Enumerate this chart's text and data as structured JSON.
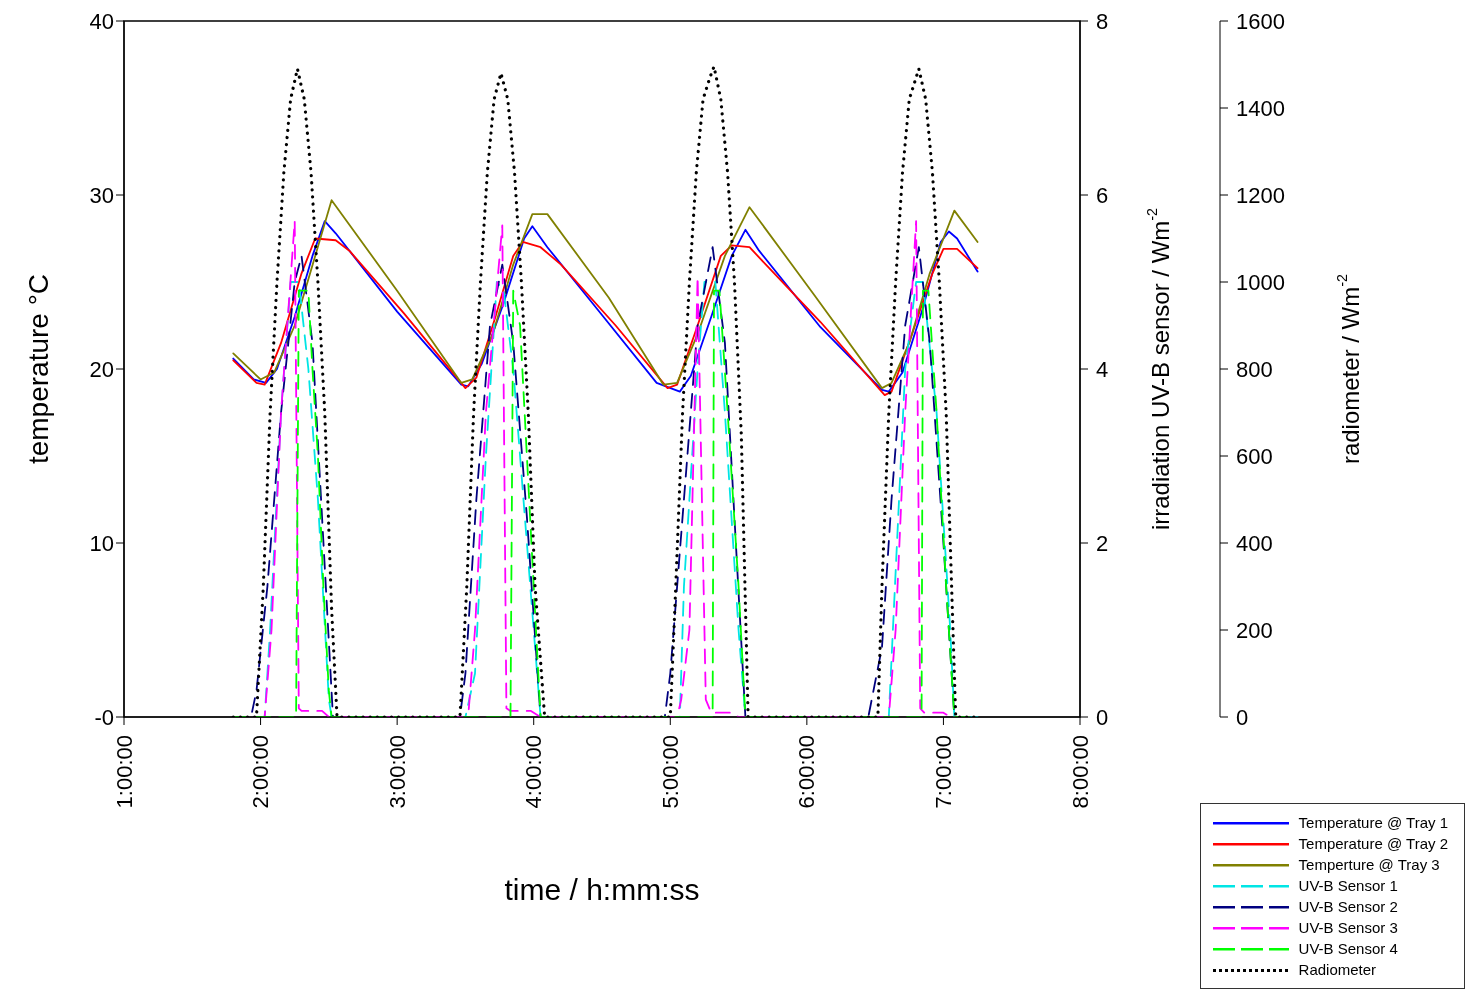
{
  "chart_data": {
    "type": "line",
    "xlabel": "time / h:mm:ss",
    "ylabel": "temperature  °C",
    "y2label": "irradiation UV-B sensor / Wm$^{-2}$",
    "y3label": "radiometer / Wm$^{-2}$",
    "xlim": [
      1,
      8
    ],
    "xticks": [
      {
        "value": 1,
        "label": "1:00:00"
      },
      {
        "value": 2,
        "label": "2:00:00"
      },
      {
        "value": 3,
        "label": "3:00:00"
      },
      {
        "value": 4,
        "label": "4:00:00"
      },
      {
        "value": 5,
        "label": "5:00:00"
      },
      {
        "value": 6,
        "label": "6:00:00"
      },
      {
        "value": 7,
        "label": "7:00:00"
      },
      {
        "value": 8,
        "label": "8:00:00"
      }
    ],
    "ylim": [
      0,
      40
    ],
    "yticks": [
      {
        "value": 0,
        "label": "-0"
      },
      10,
      20,
      30,
      40
    ],
    "y2lim": [
      0,
      8
    ],
    "y2ticks": [
      0,
      2,
      4,
      6,
      8
    ],
    "y3lim": [
      0,
      1600
    ],
    "y3ticks": [
      0,
      200,
      400,
      600,
      800,
      1000,
      1200,
      1400,
      1600
    ],
    "legend": "bottom right",
    "series": [
      {
        "name": "Temperature @ Tray 1",
        "color": "#0000ff",
        "line_style": "solid",
        "x": [
          1.8,
          1.95,
          2.04,
          2.12,
          2.25,
          2.38,
          2.47,
          2.55,
          3.0,
          3.47,
          3.52,
          3.62,
          3.78,
          3.93,
          3.99,
          4.1,
          4.5,
          4.9,
          5.07,
          5.15,
          5.3,
          5.45,
          5.55,
          5.65,
          6.1,
          6.55,
          6.6,
          6.7,
          6.85,
          6.98,
          7.04,
          7.1,
          7.25
        ],
        "values": [
          20.6,
          19.4,
          19.2,
          20.0,
          23.0,
          26.5,
          28.5,
          27.8,
          23.3,
          19.1,
          19.0,
          20.3,
          23.8,
          27.5,
          28.2,
          27.0,
          23.1,
          19.2,
          18.7,
          19.6,
          23.0,
          26.5,
          28.0,
          26.8,
          22.4,
          18.8,
          18.7,
          19.8,
          23.5,
          27.3,
          27.9,
          27.5,
          25.6
        ]
      },
      {
        "name": "Temperature @ Tray 2",
        "color": "#ff0000",
        "line_style": "solid",
        "x": [
          1.8,
          1.97,
          2.03,
          2.15,
          2.3,
          2.4,
          2.55,
          2.65,
          3.05,
          3.5,
          3.58,
          3.72,
          3.85,
          3.92,
          4.05,
          4.2,
          4.6,
          4.98,
          5.05,
          5.2,
          5.37,
          5.45,
          5.58,
          5.7,
          6.1,
          6.57,
          6.62,
          6.77,
          6.92,
          7.0,
          7.1,
          7.25
        ],
        "values": [
          20.5,
          19.2,
          19.1,
          21.5,
          25.5,
          27.5,
          27.4,
          26.8,
          23.2,
          18.9,
          19.5,
          23.0,
          26.5,
          27.3,
          27.0,
          26.0,
          22.5,
          18.9,
          19.1,
          22.5,
          26.5,
          27.1,
          27.0,
          26.0,
          22.7,
          18.5,
          18.7,
          22.0,
          25.5,
          26.9,
          26.9,
          25.8
        ]
      },
      {
        "name": "Temperture @ Tray 3",
        "color": "#808000",
        "line_style": "solid",
        "x": [
          1.8,
          2.0,
          2.1,
          2.25,
          2.4,
          2.52,
          3.0,
          3.47,
          3.55,
          3.7,
          3.85,
          3.99,
          4.1,
          4.55,
          4.95,
          5.05,
          5.2,
          5.4,
          5.58,
          6.05,
          6.55,
          6.62,
          6.75,
          6.9,
          7.08,
          7.25
        ],
        "values": [
          20.9,
          19.4,
          19.8,
          22.5,
          26.5,
          29.7,
          24.5,
          19.2,
          19.4,
          22.0,
          26.0,
          28.9,
          28.9,
          24.1,
          19.1,
          19.2,
          22.0,
          26.5,
          29.3,
          24.3,
          18.9,
          19.2,
          21.5,
          25.5,
          29.1,
          27.3
        ]
      },
      {
        "name": "UV-B Sensor 1",
        "color": "#00e5e5",
        "line_style": "dashed",
        "axis": "y2",
        "x": [
          1.8,
          2.03,
          2.07,
          2.15,
          2.22,
          2.28,
          2.35,
          2.42,
          2.5,
          2.52,
          3.5,
          3.57,
          3.65,
          3.73,
          3.78,
          3.85,
          3.95,
          4.05,
          5.07,
          5.1,
          5.2,
          5.25,
          5.33,
          5.4,
          5.5,
          5.55,
          6.6,
          6.63,
          6.72,
          6.8,
          6.85,
          6.95,
          7.05,
          7.08,
          7.25
        ],
        "values": [
          0,
          0,
          1.0,
          3.5,
          5.0,
          5.0,
          4.0,
          2.5,
          0.2,
          0,
          0,
          0.5,
          3.0,
          5.0,
          4.9,
          4.0,
          2.0,
          0,
          0,
          1.5,
          4.0,
          5.0,
          5.0,
          3.5,
          1.0,
          0,
          0,
          1.0,
          4.0,
          5.0,
          5.0,
          3.5,
          1.0,
          0,
          0
        ]
      },
      {
        "name": "UV-B Sensor 2",
        "color": "#000080",
        "line_style": "dashed",
        "axis": "y2",
        "x": [
          1.8,
          1.93,
          1.97,
          2.05,
          2.15,
          2.25,
          2.3,
          2.38,
          2.45,
          2.53,
          3.46,
          3.5,
          3.58,
          3.68,
          3.77,
          3.85,
          3.95,
          4.05,
          4.96,
          5.0,
          5.1,
          5.2,
          5.31,
          5.4,
          5.48,
          5.55,
          6.45,
          6.55,
          6.62,
          6.72,
          6.82,
          6.9,
          7.0,
          7.08,
          7.25
        ],
        "values": [
          0,
          0,
          0.3,
          1.5,
          3.5,
          5.0,
          5.3,
          4.3,
          2.3,
          0,
          0,
          0.5,
          2.5,
          4.5,
          5.2,
          4.3,
          2.3,
          0,
          0,
          0.5,
          2.5,
          4.5,
          5.4,
          4.3,
          2.0,
          0,
          0,
          0.8,
          2.5,
          4.5,
          5.4,
          4.3,
          2.0,
          0,
          0
        ]
      },
      {
        "name": "UV-B Sensor 3",
        "color": "#ff00ff",
        "line_style": "dashed",
        "axis": "y2",
        "x": [
          1.8,
          2.03,
          2.08,
          2.15,
          2.25,
          2.28,
          2.3,
          2.45,
          2.5,
          3.52,
          3.57,
          3.65,
          3.77,
          3.8,
          3.83,
          3.98,
          4.05,
          5.05,
          5.08,
          5.14,
          5.2,
          5.26,
          5.3,
          5.45,
          5.5,
          6.6,
          6.65,
          6.72,
          6.8,
          6.83,
          6.86,
          7.0,
          7.05,
          7.25
        ],
        "values": [
          0,
          0,
          1.0,
          3.5,
          5.7,
          0.1,
          0.07,
          0.07,
          0,
          0,
          1.0,
          3.5,
          5.65,
          0.1,
          0.07,
          0.07,
          0,
          0,
          0.2,
          1.0,
          5.06,
          0.2,
          0.05,
          0.05,
          0,
          0,
          1.0,
          3.5,
          5.7,
          0.1,
          0.05,
          0.05,
          0,
          0
        ]
      },
      {
        "name": "UV-B Sensor 4",
        "color": "#00ff00",
        "line_style": "dashed",
        "axis": "y2",
        "x": [
          1.8,
          2.26,
          2.28,
          2.35,
          2.38,
          2.42,
          2.46,
          2.5,
          2.52,
          3.83,
          3.85,
          3.9,
          3.95,
          4.0,
          4.05,
          5.31,
          5.32,
          5.36,
          5.42,
          5.5,
          5.55,
          6.84,
          6.85,
          6.89,
          6.95,
          7.02,
          7.08,
          7.25
        ],
        "values": [
          0,
          0,
          4.9,
          4.9,
          4.0,
          3.0,
          1.5,
          0.3,
          0,
          0,
          4.9,
          4.5,
          3.0,
          1.5,
          0,
          0,
          4.9,
          4.9,
          3.5,
          1.5,
          0,
          0,
          4.9,
          4.9,
          3.5,
          1.5,
          0,
          0
        ]
      },
      {
        "name": "Radiometer",
        "color": "#000000",
        "line_style": "dotted",
        "axis": "y3",
        "x": [
          1.8,
          1.97,
          2.02,
          2.07,
          2.12,
          2.17,
          2.22,
          2.27,
          2.32,
          2.37,
          2.42,
          2.47,
          2.52,
          2.56,
          3.46,
          3.51,
          3.56,
          3.61,
          3.66,
          3.71,
          3.76,
          3.81,
          3.86,
          3.91,
          3.96,
          4.01,
          4.08,
          5.0,
          5.04,
          5.09,
          5.14,
          5.19,
          5.24,
          5.29,
          5.32,
          5.37,
          5.42,
          5.47,
          5.52,
          5.57,
          6.52,
          6.55,
          6.6,
          6.65,
          6.7,
          6.75,
          6.8,
          6.82,
          6.87,
          6.92,
          6.97,
          7.02,
          7.09,
          7.25
        ],
        "values": [
          0,
          0,
          300,
          700,
          1000,
          1250,
          1420,
          1490,
          1420,
          1250,
          1000,
          700,
          250,
          0,
          0,
          300,
          700,
          1000,
          1250,
          1420,
          1480,
          1420,
          1250,
          1000,
          700,
          300,
          0,
          0,
          300,
          700,
          1000,
          1250,
          1420,
          1470,
          1495,
          1420,
          1250,
          1000,
          650,
          0,
          0,
          300,
          700,
          1000,
          1250,
          1420,
          1470,
          1490,
          1420,
          1250,
          1000,
          700,
          0,
          0
        ]
      }
    ]
  }
}
